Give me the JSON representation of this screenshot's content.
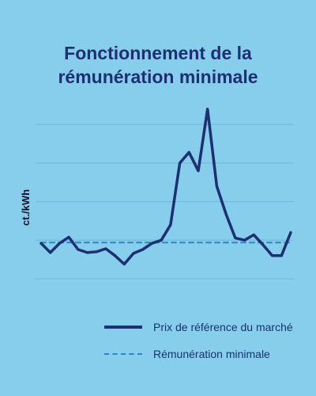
{
  "chart_data": {
    "type": "line",
    "title": [
      "Fonctionnement de la",
      "rémunération minimale"
    ],
    "ylabel": "ct./kWh",
    "xlabel": "",
    "grid": true,
    "legend_position": "bottom",
    "ylim": [
      0,
      10
    ],
    "x": [
      0,
      1,
      2,
      3,
      4,
      5,
      6,
      7,
      8,
      9,
      10,
      11,
      12,
      13,
      14,
      15,
      16,
      17,
      18,
      19,
      20,
      21,
      22,
      23,
      24,
      25,
      26,
      27
    ],
    "series": [
      {
        "name": "Prix de référence du marché",
        "style": "solid",
        "color": "#1e2f72",
        "values": [
          2.3,
          1.7,
          2.3,
          2.7,
          1.9,
          1.7,
          1.75,
          1.95,
          1.5,
          0.95,
          1.65,
          1.9,
          2.3,
          2.5,
          3.5,
          7.5,
          8.2,
          7.0,
          11.0,
          6.0,
          4.2,
          2.65,
          2.5,
          2.85,
          2.2,
          1.5,
          1.5,
          3.0
        ]
      },
      {
        "name": "Rémunération minimale",
        "style": "dashed",
        "color": "#2a86c4",
        "values": [
          2.35,
          2.35,
          2.35,
          2.35,
          2.35,
          2.35,
          2.35,
          2.35,
          2.35,
          2.35,
          2.35,
          2.35,
          2.35,
          2.35,
          2.35,
          2.35,
          2.35,
          2.35,
          2.35,
          2.35,
          2.35,
          2.35,
          2.35,
          2.35,
          2.35,
          2.35,
          2.35,
          2.35
        ]
      }
    ]
  }
}
